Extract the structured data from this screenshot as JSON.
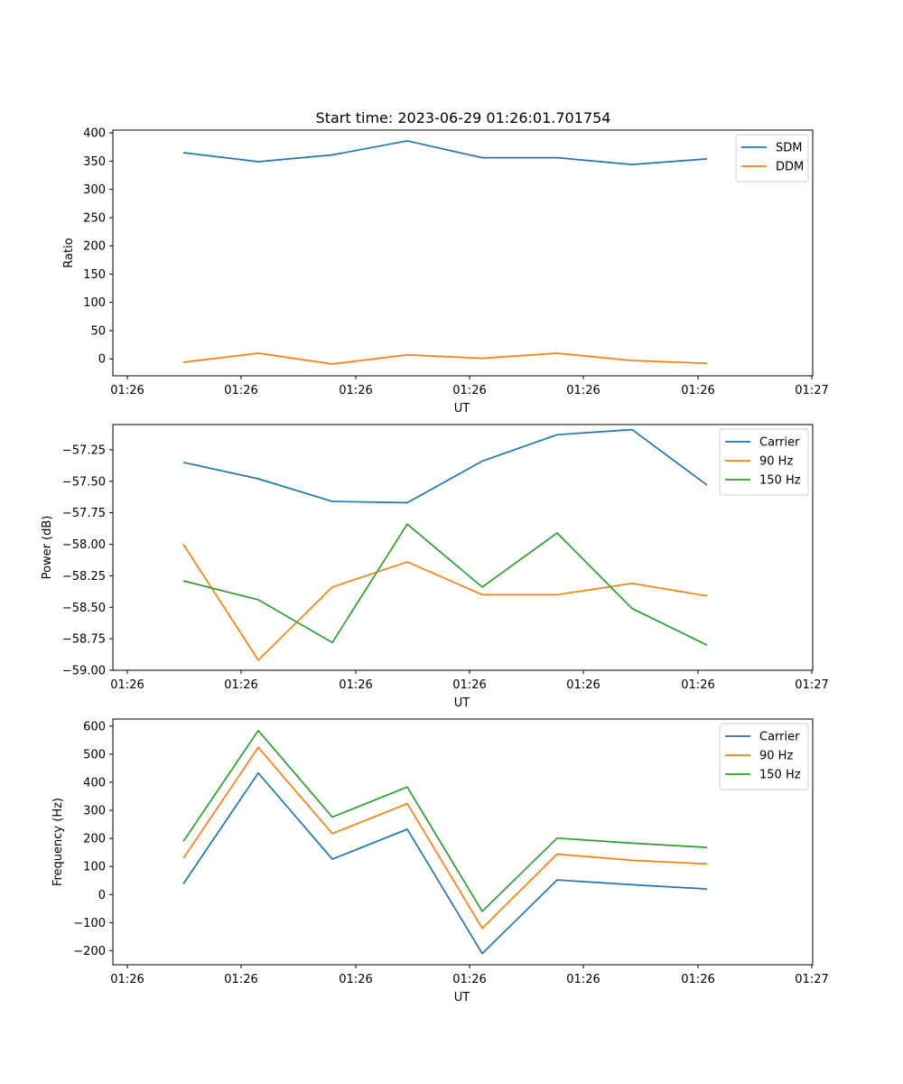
{
  "figure": {
    "title": "Start time: 2023-06-29 01:26:01.701754"
  },
  "chart_data": [
    {
      "type": "line",
      "xlabel": "UT",
      "ylabel": "Ratio",
      "x_tick_labels": [
        "01:26",
        "01:26",
        "01:26",
        "01:26",
        "01:26",
        "01:26",
        "01:27"
      ],
      "y_ticks": [
        0,
        50,
        100,
        150,
        200,
        250,
        300,
        350,
        400
      ],
      "y_tick_labels": [
        "0",
        "50",
        "100",
        "150",
        "200",
        "250",
        "300",
        "350",
        "400"
      ],
      "ylim": [
        -30,
        405
      ],
      "legend_position": "top-right",
      "grid": false,
      "series": [
        {
          "name": "SDM",
          "color": "#1f77b4",
          "values": [
            365,
            349,
            361,
            386,
            356,
            356,
            344,
            354
          ]
        },
        {
          "name": "DDM",
          "color": "#ff7f0e",
          "values": [
            -6,
            10,
            -9,
            7,
            1,
            10,
            -3,
            -8
          ]
        }
      ]
    },
    {
      "type": "line",
      "xlabel": "UT",
      "ylabel": "Power (dB)",
      "x_tick_labels": [
        "01:26",
        "01:26",
        "01:26",
        "01:26",
        "01:26",
        "01:26",
        "01:27"
      ],
      "y_ticks": [
        -59.0,
        -58.75,
        -58.5,
        -58.25,
        -58.0,
        -57.75,
        -57.5,
        -57.25
      ],
      "y_tick_labels": [
        "−59.00",
        "−58.75",
        "−58.50",
        "−58.25",
        "−58.00",
        "−57.75",
        "−57.50",
        "−57.25"
      ],
      "ylim": [
        -59.0,
        -57.05
      ],
      "legend_position": "top-right",
      "grid": false,
      "series": [
        {
          "name": "Carrier",
          "color": "#1f77b4",
          "values": [
            -57.35,
            -57.48,
            -57.66,
            -57.67,
            -57.34,
            -57.13,
            -57.09,
            -57.53
          ]
        },
        {
          "name": "90 Hz",
          "color": "#ff7f0e",
          "values": [
            -58.0,
            -58.92,
            -58.34,
            -58.14,
            -58.4,
            -58.4,
            -58.31,
            -58.41
          ]
        },
        {
          "name": "150 Hz",
          "color": "#2ca02c",
          "values": [
            -58.29,
            -58.44,
            -58.78,
            -57.84,
            -58.34,
            -57.91,
            -58.51,
            -58.8
          ]
        }
      ]
    },
    {
      "type": "line",
      "xlabel": "UT",
      "ylabel": "Frequency (Hz)",
      "x_tick_labels": [
        "01:26",
        "01:26",
        "01:26",
        "01:26",
        "01:26",
        "01:26",
        "01:27"
      ],
      "y_ticks": [
        -200,
        -100,
        0,
        100,
        200,
        300,
        400,
        500,
        600
      ],
      "y_tick_labels": [
        "−200",
        "−100",
        "0",
        "100",
        "200",
        "300",
        "400",
        "500",
        "600"
      ],
      "ylim": [
        -250,
        625
      ],
      "legend_position": "top-right",
      "grid": false,
      "series": [
        {
          "name": "Carrier",
          "color": "#1f77b4",
          "values": [
            38,
            433,
            126,
            233,
            -210,
            52,
            35,
            20
          ]
        },
        {
          "name": "90 Hz",
          "color": "#ff7f0e",
          "values": [
            129,
            524,
            217,
            324,
            -120,
            144,
            122,
            109
          ]
        },
        {
          "name": "150 Hz",
          "color": "#2ca02c",
          "values": [
            189,
            584,
            276,
            383,
            -60,
            201,
            183,
            168
          ]
        }
      ]
    }
  ]
}
